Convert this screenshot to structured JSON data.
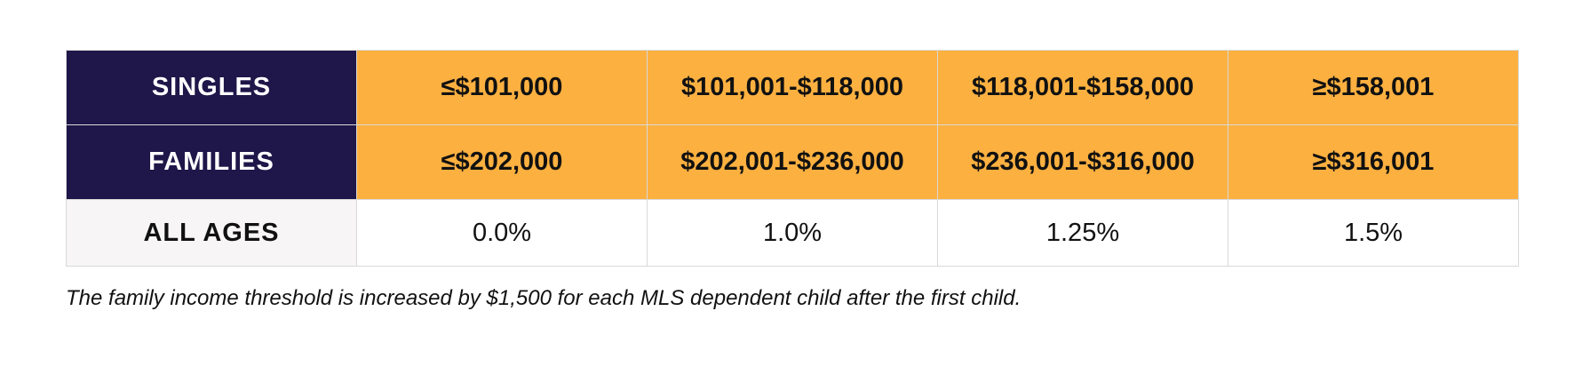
{
  "table": {
    "rows": [
      {
        "label": "SINGLES",
        "cells": [
          "≤$101,000",
          "$101,001-$118,000",
          "$118,001-$158,000",
          "≥$158,001"
        ]
      },
      {
        "label": "FAMILIES",
        "cells": [
          "≤$202,000",
          "$202,001-$236,000",
          "$236,001-$316,000",
          "≥$316,001"
        ]
      },
      {
        "label": "ALL AGES",
        "cells": [
          "0.0%",
          "1.0%",
          "1.25%",
          "1.5%"
        ]
      }
    ]
  },
  "footnote": "The family income threshold is increased by $1,500 for each MLS dependent child after the first child.",
  "colors": {
    "header_navy": "#1f1649",
    "threshold_orange": "#fbb040",
    "label_light_gray": "#f7f5f6",
    "border_gray": "#d9d9d9"
  }
}
